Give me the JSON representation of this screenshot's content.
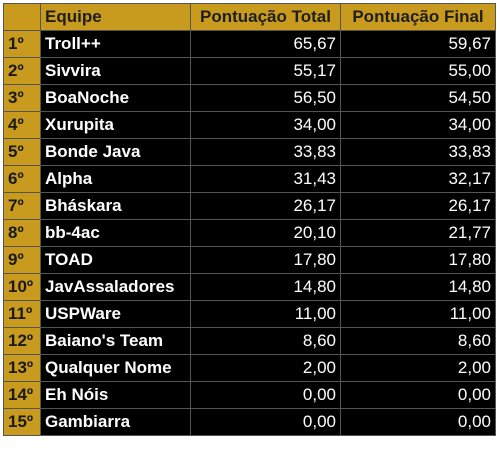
{
  "table": {
    "headers": {
      "team": "Equipe",
      "total": "Pontuação Total",
      "final": "Pontuação Final"
    },
    "rows": [
      {
        "rank": "1º",
        "team": "Troll++",
        "total": "65,67",
        "final": "59,67"
      },
      {
        "rank": "2º",
        "team": "Sivvira",
        "total": "55,17",
        "final": "55,00"
      },
      {
        "rank": "3º",
        "team": "BoaNoche",
        "total": "56,50",
        "final": "54,50"
      },
      {
        "rank": "4º",
        "team": "Xurupita",
        "total": "34,00",
        "final": "34,00"
      },
      {
        "rank": "5º",
        "team": "Bonde Java",
        "total": "33,83",
        "final": "33,83"
      },
      {
        "rank": "6º",
        "team": "Alpha",
        "total": "31,43",
        "final": "32,17"
      },
      {
        "rank": "7º",
        "team": "Bháskara",
        "total": "26,17",
        "final": "26,17"
      },
      {
        "rank": "8º",
        "team": "bb-4ac",
        "total": "20,10",
        "final": "21,77"
      },
      {
        "rank": "9º",
        "team": "TOAD",
        "total": "17,80",
        "final": "17,80"
      },
      {
        "rank": "10º",
        "team": "JavAssaladores",
        "total": "14,80",
        "final": "14,80"
      },
      {
        "rank": "11º",
        "team": "USPWare",
        "total": "11,00",
        "final": "11,00"
      },
      {
        "rank": "12º",
        "team": "Baiano's Team",
        "total": "8,60",
        "final": "8,60"
      },
      {
        "rank": "13º",
        "team": "Qualquer Nome",
        "total": "2,00",
        "final": "2,00"
      },
      {
        "rank": "14º",
        "team": "Eh Nóis",
        "total": "0,00",
        "final": "0,00"
      },
      {
        "rank": "15º",
        "team": "Gambiarra",
        "total": "0,00",
        "final": "0,00"
      }
    ]
  },
  "colors": {
    "gold": "#c89a1e",
    "cell_bg": "#000000",
    "cell_text": "#ffffff"
  }
}
